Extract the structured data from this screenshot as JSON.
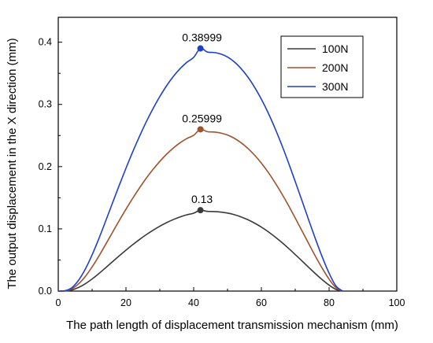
{
  "chart_data": {
    "type": "line",
    "title": "",
    "xlabel": "The path length of displacement transmission mechanism (mm)",
    "ylabel": "The output displacement in the X direction (mm)",
    "xlim": [
      0,
      100
    ],
    "ylim": [
      0,
      0.44
    ],
    "xticks": [
      0,
      20,
      40,
      60,
      80,
      100
    ],
    "yticks": [
      0.0,
      0.1,
      0.2,
      0.3,
      0.4
    ],
    "xtick_labels": [
      "0",
      "20",
      "40",
      "60",
      "80",
      "100"
    ],
    "ytick_labels": [
      "0.0",
      "0.1",
      "0.2",
      "0.3",
      "0.4"
    ],
    "grid": false,
    "legend_position": "top-right",
    "series": [
      {
        "name": "100N",
        "color": "#3a3a3a",
        "x": [
          0,
          2,
          4,
          6,
          8,
          10,
          12,
          14,
          16,
          18,
          20,
          22,
          24,
          26,
          28,
          30,
          32,
          34,
          36,
          38,
          40,
          42,
          44,
          46,
          48,
          50,
          52,
          54,
          56,
          58,
          60,
          62,
          64,
          66,
          68,
          70,
          72,
          74,
          76,
          78,
          80,
          82,
          84
        ],
        "y": [
          0.0,
          0.0002,
          0.0018,
          0.0058,
          0.0118,
          0.0194,
          0.0281,
          0.0375,
          0.0471,
          0.0566,
          0.0658,
          0.0746,
          0.0829,
          0.0907,
          0.0978,
          0.1042,
          0.11,
          0.115,
          0.1192,
          0.1226,
          0.1252,
          0.13,
          0.1281,
          0.1278,
          0.127,
          0.1254,
          0.1228,
          0.1192,
          0.1147,
          0.1092,
          0.1028,
          0.0955,
          0.0873,
          0.0784,
          0.0688,
          0.0587,
          0.0484,
          0.038,
          0.0278,
          0.0182,
          0.0096,
          0.0028,
          0.0
        ]
      },
      {
        "name": "200N",
        "color": "#a0522d",
        "x": [
          0,
          2,
          4,
          6,
          8,
          10,
          12,
          14,
          16,
          18,
          20,
          22,
          24,
          26,
          28,
          30,
          32,
          34,
          36,
          38,
          40,
          42,
          44,
          46,
          48,
          50,
          52,
          54,
          56,
          58,
          60,
          62,
          64,
          66,
          68,
          70,
          72,
          74,
          76,
          78,
          80,
          82,
          84
        ],
        "y": [
          0.0,
          0.0004,
          0.0036,
          0.0116,
          0.0236,
          0.0388,
          0.0562,
          0.075,
          0.0942,
          0.1132,
          0.1316,
          0.1492,
          0.1658,
          0.1814,
          0.1956,
          0.2084,
          0.22,
          0.23,
          0.2384,
          0.2452,
          0.2504,
          0.25999,
          0.2562,
          0.2556,
          0.254,
          0.2508,
          0.2456,
          0.2384,
          0.2294,
          0.2184,
          0.2056,
          0.191,
          0.1746,
          0.1568,
          0.1376,
          0.1174,
          0.0968,
          0.076,
          0.0556,
          0.0364,
          0.0192,
          0.0056,
          0.0
        ]
      },
      {
        "name": "300N",
        "color": "#1f3fc9",
        "x": [
          0,
          2,
          4,
          6,
          8,
          10,
          12,
          14,
          16,
          18,
          20,
          22,
          24,
          26,
          28,
          30,
          32,
          34,
          36,
          38,
          40,
          42,
          44,
          46,
          48,
          50,
          52,
          54,
          56,
          58,
          60,
          62,
          64,
          66,
          68,
          70,
          72,
          74,
          76,
          78,
          80,
          82,
          84
        ],
        "y": [
          0.0,
          0.0006,
          0.0054,
          0.0174,
          0.0354,
          0.0582,
          0.0843,
          0.1125,
          0.1413,
          0.1698,
          0.1974,
          0.2238,
          0.2487,
          0.2721,
          0.2934,
          0.3126,
          0.33,
          0.345,
          0.3576,
          0.3678,
          0.3756,
          0.38999,
          0.3843,
          0.3834,
          0.381,
          0.3762,
          0.3684,
          0.3576,
          0.3441,
          0.3276,
          0.3084,
          0.2865,
          0.2619,
          0.2352,
          0.2064,
          0.1761,
          0.1452,
          0.114,
          0.0834,
          0.0546,
          0.0288,
          0.0084,
          0.0
        ]
      }
    ],
    "annotations": [
      {
        "text": "0.38999",
        "x": 42,
        "y": 0.38999,
        "color": "#1f3fc9"
      },
      {
        "text": "0.25999",
        "x": 42,
        "y": 0.25999,
        "color": "#a0522d"
      },
      {
        "text": "0.13",
        "x": 42,
        "y": 0.13,
        "color": "#3a3a3a"
      }
    ]
  }
}
